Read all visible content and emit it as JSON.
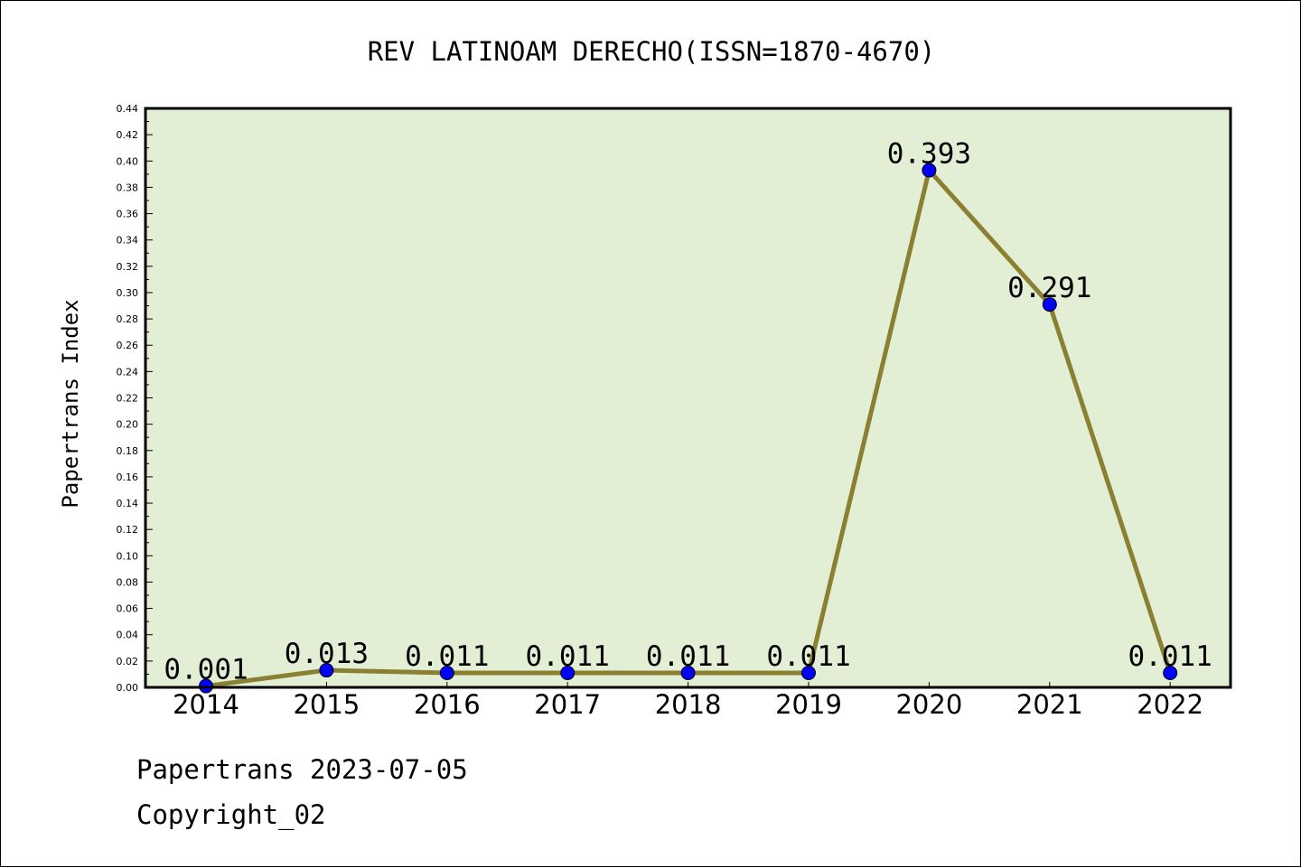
{
  "chart_data": {
    "type": "line",
    "title": "REV LATINOAM DERECHO(ISSN=1870-4670)",
    "xlabel": "",
    "ylabel": "Papertrans Index",
    "categories": [
      "2014",
      "2015",
      "2016",
      "2017",
      "2018",
      "2019",
      "2020",
      "2021",
      "2022"
    ],
    "series": [
      {
        "values": [
          0.001,
          0.013,
          0.011,
          0.011,
          0.011,
          0.011,
          0.393,
          0.291,
          0.011
        ],
        "labels": [
          "0.001",
          "0.013",
          "0.011",
          "0.011",
          "0.011",
          "0.011",
          "0.393",
          "0.291",
          "0.011"
        ]
      }
    ],
    "ylim": [
      0,
      0.44
    ],
    "yticks": [
      "0.00",
      "0.02",
      "0.04",
      "0.06",
      "0.08",
      "0.10",
      "0.12",
      "0.14",
      "0.16",
      "0.18",
      "0.20",
      "0.22",
      "0.24",
      "0.26",
      "0.28",
      "0.30",
      "0.32",
      "0.34",
      "0.36",
      "0.38",
      "0.40",
      "0.42",
      "0.44"
    ],
    "grid": false,
    "colors": {
      "plot_background": "#e2efd5",
      "line": "#8b8032",
      "marker": "#0000ff"
    }
  },
  "footer": {
    "date_text": "Papertrans 2023-07-05",
    "copyright_text": "Copyright_02"
  }
}
